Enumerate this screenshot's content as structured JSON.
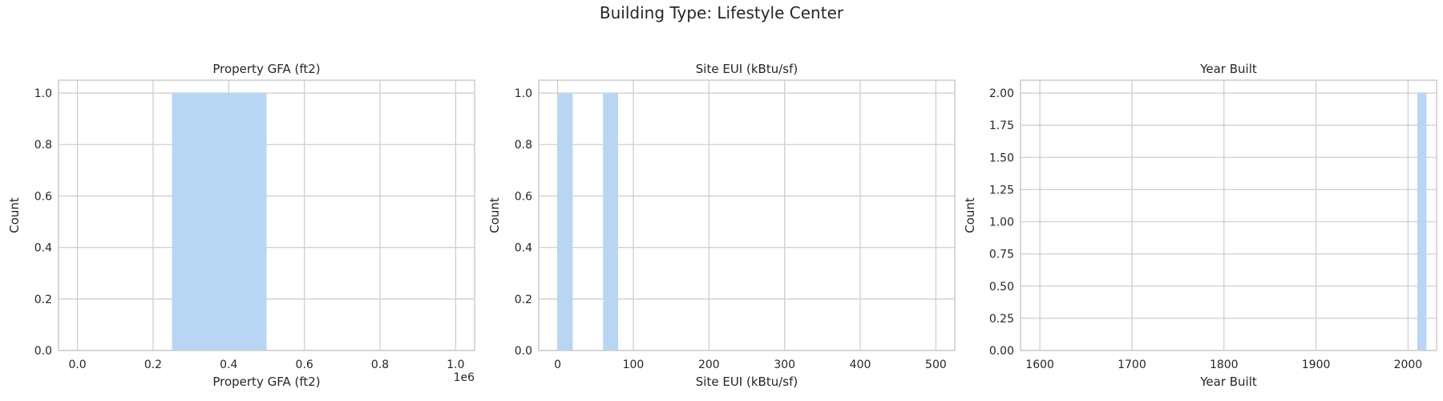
{
  "suptitle": "Building Type: Lifestyle Center",
  "colors": {
    "bar": "#b8d6f4",
    "grid": "#cfcfcf",
    "spine": "#cccccc",
    "text": "#262626"
  },
  "chart_data": [
    {
      "type": "bar",
      "title": "Property GFA (ft2)",
      "xlabel": "Property GFA (ft2)",
      "ylabel": "Count",
      "offset_text": "1e6",
      "xlim": [
        -50000,
        1050000
      ],
      "ylim": [
        0,
        1.05
      ],
      "xticks": [
        0,
        200000,
        400000,
        600000,
        800000,
        1000000
      ],
      "xtick_labels": [
        "0.0",
        "0.2",
        "0.4",
        "0.6",
        "0.8",
        "1.0"
      ],
      "yticks": [
        0,
        0.2,
        0.4,
        0.6,
        0.8,
        1.0
      ],
      "ytick_labels": [
        "0.0",
        "0.2",
        "0.4",
        "0.6",
        "0.8",
        "1.0"
      ],
      "bins": [
        {
          "x0": 250000,
          "x1": 500000,
          "count": 1
        }
      ]
    },
    {
      "type": "bar",
      "title": "Site EUI (kBtu/sf)",
      "xlabel": "Site EUI (kBtu/sf)",
      "ylabel": "Count",
      "xlim": [
        -25,
        525
      ],
      "ylim": [
        0,
        1.05
      ],
      "xticks": [
        0,
        100,
        200,
        300,
        400,
        500
      ],
      "xtick_labels": [
        "0",
        "100",
        "200",
        "300",
        "400",
        "500"
      ],
      "yticks": [
        0,
        0.2,
        0.4,
        0.6,
        0.8,
        1.0
      ],
      "ytick_labels": [
        "0.0",
        "0.2",
        "0.4",
        "0.6",
        "0.8",
        "1.0"
      ],
      "bins": [
        {
          "x0": 0,
          "x1": 20,
          "count": 1
        },
        {
          "x0": 60,
          "x1": 80,
          "count": 1
        }
      ]
    },
    {
      "type": "bar",
      "title": "Year Built",
      "xlabel": "Year Built",
      "ylabel": "Count",
      "xlim": [
        1579,
        2031
      ],
      "ylim": [
        0,
        2.1
      ],
      "xticks": [
        1600,
        1700,
        1800,
        1900,
        2000
      ],
      "xtick_labels": [
        "1600",
        "1700",
        "1800",
        "1900",
        "2000"
      ],
      "yticks": [
        0,
        0.25,
        0.5,
        0.75,
        1.0,
        1.25,
        1.5,
        1.75,
        2.0
      ],
      "ytick_labels": [
        "0.00",
        "0.25",
        "0.50",
        "0.75",
        "1.00",
        "1.25",
        "1.50",
        "1.75",
        "2.00"
      ],
      "bins": [
        {
          "x0": 2010,
          "x1": 2020,
          "count": 2
        }
      ]
    }
  ]
}
